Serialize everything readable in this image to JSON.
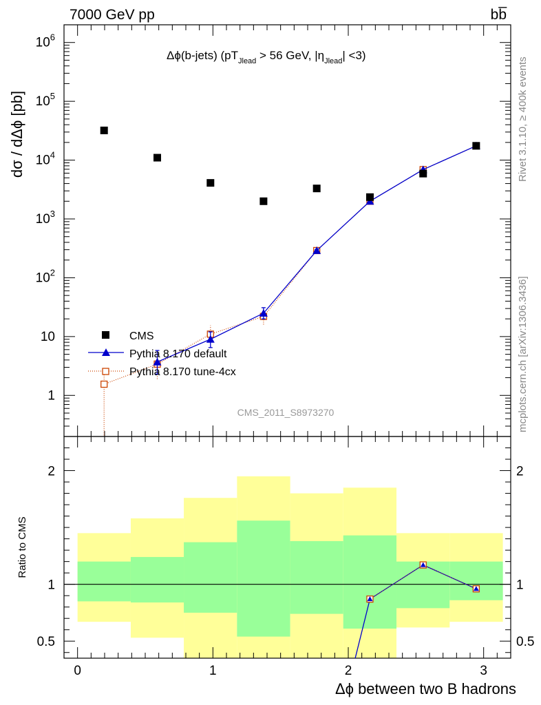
{
  "header": {
    "energy_label": "7000 GeV pp",
    "process_label": "bb̅"
  },
  "side_labels": {
    "rivet": "Rivet 3.1.10, ≥ 400k events",
    "mcplots": "mcplots.cern.ch [arXiv:1306.3436]"
  },
  "watermark": "CMS_2011_S8973270",
  "colors": {
    "cms": "#000000",
    "pythia_default": "#0000cc",
    "pythia_tune": "#cc4400",
    "band_inner": "#99ff99",
    "band_outer": "#ffff99"
  },
  "chart_data": [
    {
      "type": "scatter",
      "panel": "main",
      "title": "Δϕ(b-jets) (pT_Jlead > 56 GeV, |η_Jlead| <3)",
      "ylabel": "dσ / dΔϕ [pb]",
      "yscale": "log",
      "xlim": [
        -0.1,
        3.2
      ],
      "ylim": [
        0.2,
        2000000
      ],
      "y_ticks": [
        {
          "value": 1,
          "label": "1"
        },
        {
          "value": 10,
          "label": "10"
        },
        {
          "value": 100,
          "label": "10",
          "exp": "2"
        },
        {
          "value": 1000,
          "label": "10",
          "exp": "3"
        },
        {
          "value": 10000,
          "label": "10",
          "exp": "4"
        },
        {
          "value": 100000,
          "label": "10",
          "exp": "5"
        },
        {
          "value": 1000000,
          "label": "10",
          "exp": "6"
        }
      ],
      "series": [
        {
          "name": "CMS",
          "style": "filled-square",
          "x": [
            0.196,
            0.589,
            0.982,
            1.374,
            1.767,
            2.16,
            2.553,
            2.945
          ],
          "y": [
            32000,
            11000,
            4100,
            2000,
            3300,
            2350,
            5900,
            17500
          ]
        },
        {
          "name": "Pythia 8.170 default",
          "style": "blue-triangle-line",
          "x": [
            0.589,
            0.982,
            1.374,
            1.767,
            2.16,
            2.553,
            2.945
          ],
          "y": [
            3.7,
            9.0,
            25,
            290,
            2000,
            6900,
            17500
          ],
          "yerr_low": [
            2.3,
            6.5,
            20,
            280,
            1950,
            6800,
            17300
          ],
          "yerr_high": [
            5.8,
            12.0,
            31,
            300,
            2050,
            7000,
            17700
          ]
        },
        {
          "name": "Pythia 8.170 tune-4cx",
          "style": "orange-open-square-dotted",
          "x": [
            0.196,
            0.589,
            0.982,
            1.374,
            1.767,
            2.16,
            2.553,
            2.945
          ],
          "y": [
            1.55,
            3.4,
            11,
            22,
            290,
            2000,
            6900,
            17500
          ],
          "yerr_low": [
            0.21,
            1.9,
            8.0,
            16,
            280,
            1950,
            6800,
            17300
          ],
          "yerr_high": [
            3.0,
            5.2,
            15.5,
            29,
            300,
            2050,
            7000,
            17700
          ]
        }
      ]
    },
    {
      "type": "line",
      "panel": "ratio",
      "xlabel": "Δϕ between two B hadrons",
      "ylabel": "Ratio to CMS",
      "xlim": [
        -0.1,
        3.2
      ],
      "ylim": [
        0.35,
        2.3
      ],
      "x_ticks": [
        0,
        1,
        2,
        3
      ],
      "y_ticks_left": [
        0.5,
        1,
        2
      ],
      "y_ticks_right": [
        0.5,
        1,
        2
      ],
      "reference_line": 1,
      "bin_edges": [
        0.0,
        0.393,
        0.785,
        1.178,
        1.571,
        1.963,
        2.356,
        2.749,
        3.142
      ],
      "band_inner": {
        "low": [
          0.85,
          0.84,
          0.75,
          0.54,
          0.74,
          0.61,
          0.79,
          0.86
        ],
        "high": [
          1.2,
          1.24,
          1.37,
          1.56,
          1.38,
          1.43,
          1.2,
          1.2
        ]
      },
      "band_outer": {
        "low": [
          0.67,
          0.53,
          0.32,
          0.32,
          0.32,
          0.32,
          0.62,
          0.67
        ],
        "high": [
          1.45,
          1.58,
          1.76,
          1.95,
          1.8,
          1.85,
          1.45,
          1.45
        ]
      },
      "series": [
        {
          "name": "Pythia 8.170 default",
          "x": [
            2.16,
            2.553,
            2.945
          ],
          "y": [
            0.87,
            1.17,
            0.96
          ]
        },
        {
          "name": "Pythia 8.170 tune-4cx",
          "x": [
            2.16,
            2.553,
            2.945
          ],
          "y": [
            0.87,
            1.17,
            0.96
          ]
        }
      ]
    }
  ]
}
